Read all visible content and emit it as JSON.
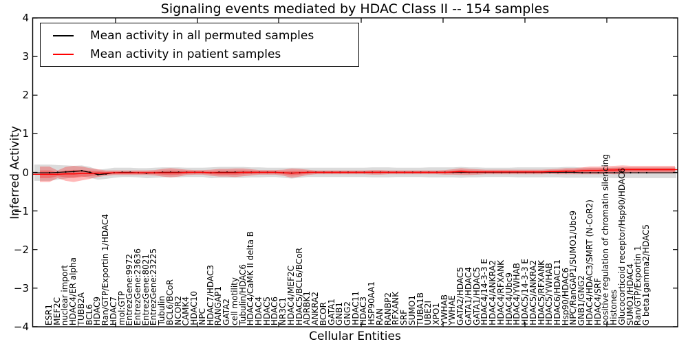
{
  "chart_data": {
    "type": "line",
    "title": "Signaling events mediated by HDAC Class II -- 154 samples",
    "xlabel": "Cellular Entities",
    "ylabel": "Inferred Activity",
    "ylim": [
      -4,
      4
    ],
    "yticks": [
      4,
      3,
      2,
      1,
      0,
      -1,
      -2,
      -3,
      -4
    ],
    "grid": false,
    "legend": {
      "position": "upper left",
      "entries": [
        {
          "label": "Mean activity in all permuted samples",
          "color": "#000000"
        },
        {
          "label": "Mean activity in patient samples",
          "color": "#ff0000"
        }
      ]
    },
    "band_colors": {
      "permuted_band": "#888888",
      "patient_band": "#ff0000"
    },
    "categories": [
      "ESR1",
      "MEF2C",
      "nuclear import",
      "HDAC4/ER alpha",
      "TUBB2A",
      "BCL6",
      "HDAC9",
      "Ran/GTP/Exportin 1/HDAC4",
      "HDAC7",
      "mol:GTP",
      "EntrezGene:9972",
      "EntrezGene:23636",
      "EntrezGene:8021",
      "EntrezGene:23225",
      "Tubulin",
      "BCL6/BCoR",
      "NCOR2",
      "CAMK4",
      "HDAC10",
      "NPC",
      "HDAC7/HDAC3",
      "RANGAP1",
      "GATA2",
      "cell motility",
      "Tubulin/HDAC6",
      "HDAC4/CaMK II delta B",
      "HDAC4",
      "HDAC5",
      "HDAC6",
      "NR3C1",
      "HDAC4/MEF2C",
      "HDAC5/BCL6/BCoR",
      "ADRBK1",
      "ANKRA2",
      "BCOR",
      "GATA1",
      "GNB1",
      "GNG2",
      "HDAC11",
      "HDAC3",
      "HSP90AA1",
      "RAN",
      "RANBP2",
      "RFXANK",
      "SRF",
      "SUMO1",
      "TUBA1B",
      "UBE2I",
      "XPO1",
      "YWHAB",
      "YWHAE",
      "GATA2/HDAC5",
      "GATA1/HDAC4",
      "GATA1/HDAC5",
      "HDAC4/14-3-3 E",
      "HDAC4/ANKRA2",
      "HDAC4/RFXANK",
      "HDAC4/Ubc9",
      "HDAC4/YWHAB",
      "HDAC5/14-3-3 E",
      "HDAC5/ANKRA2",
      "HDAC5/RFXANK",
      "HDAC5/YWHAB",
      "HDAC6/HDAC11",
      "Hsp90/HDAC6",
      "NPC/RanGAP1/SUMO1/Ubc9",
      "GNB1/GNG2",
      "HDAC4/HDAC3/SMRT (N-CoR2)",
      "HDAC4/SRF",
      "positive regulation of chromatin silencing",
      "Histones",
      "Glucocorticoid receptor/Hsp90/HDAC6",
      "SUMO1/HDAC4",
      "Ran/GTP/Exportin 1",
      "G beta1gamma2/HDAC5"
    ],
    "series": [
      {
        "name": "Mean activity in all permuted samples",
        "role": "permuted_mean",
        "color": "#000000",
        "values": [
          -0.01,
          0,
          0.01,
          0.02,
          0.04,
          0,
          -0.06,
          -0.04,
          -0.01,
          0,
          0,
          -0.01,
          -0.02,
          -0.01,
          0,
          0,
          0,
          0,
          0,
          0,
          -0.01,
          0,
          0,
          0,
          0,
          0,
          0,
          0,
          0,
          -0.01,
          -0.02,
          -0.01,
          0,
          0,
          0,
          0,
          0,
          0,
          0,
          0,
          0,
          0,
          0,
          0,
          0,
          0,
          0,
          0,
          0,
          0,
          0,
          0,
          0,
          0,
          0,
          0,
          0,
          0,
          0,
          0,
          0,
          0,
          0,
          0,
          0,
          0,
          -0.01,
          -0.01,
          -0.01,
          -0.01,
          -0.01,
          -0.01,
          -0.01,
          -0.01,
          -0.01
        ]
      },
      {
        "name": "Mean activity in patient samples",
        "role": "patient_mean",
        "color": "#ff0000",
        "values": [
          -0.05,
          -0.05,
          -0.04,
          -0.04,
          -0.03,
          -0.03,
          -0.02,
          -0.02,
          -0.01,
          -0.01,
          -0.01,
          -0.01,
          -0.01,
          -0.01,
          -0.01,
          -0.01,
          -0.01,
          0,
          0,
          0,
          -0.01,
          -0.01,
          -0.01,
          -0.01,
          0,
          0,
          0,
          0,
          0,
          -0.01,
          -0.02,
          -0.01,
          0,
          0,
          0,
          0,
          0,
          0,
          0,
          0,
          0,
          0,
          0,
          0,
          0,
          0,
          0,
          0,
          0,
          0,
          0.01,
          0.02,
          0.01,
          0.01,
          0.01,
          0.01,
          0.01,
          0.01,
          0.01,
          0.01,
          0.01,
          0.01,
          0.02,
          0.02,
          0.03,
          0.03,
          0.04,
          0.05,
          0.05,
          0.06,
          0.06,
          0.07,
          0.07,
          0.07,
          0.07
        ]
      },
      {
        "name": "Std of activity in all permuted samples (band half-width)",
        "role": "permuted_std",
        "color": "#888888",
        "values": [
          0.21,
          0.19,
          0.17,
          0.15,
          0.14,
          0.14,
          0.13,
          0.13,
          0.13,
          0.12,
          0.12,
          0.12,
          0.13,
          0.13,
          0.13,
          0.13,
          0.13,
          0.12,
          0.12,
          0.12,
          0.14,
          0.14,
          0.14,
          0.14,
          0.14,
          0.13,
          0.13,
          0.12,
          0.12,
          0.13,
          0.14,
          0.13,
          0.12,
          0.12,
          0.12,
          0.12,
          0.12,
          0.12,
          0.12,
          0.12,
          0.13,
          0.13,
          0.13,
          0.12,
          0.12,
          0.12,
          0.12,
          0.13,
          0.13,
          0.13,
          0.13,
          0.14,
          0.13,
          0.13,
          0.12,
          0.12,
          0.12,
          0.12,
          0.13,
          0.13,
          0.13,
          0.13,
          0.13,
          0.13,
          0.14,
          0.14,
          0.13,
          0.13,
          0.13,
          0.13,
          0.14,
          0.14,
          0.14,
          0.14,
          0.14
        ]
      },
      {
        "name": "Std of activity in patient samples (band half-width)",
        "role": "patient_std",
        "color": "#ff0000",
        "values": [
          0.2,
          0.1,
          0.18,
          0.21,
          0.18,
          0.14,
          0.1,
          0.07,
          0.06,
          0.06,
          0.06,
          0.06,
          0.06,
          0.07,
          0.1,
          0.12,
          0.1,
          0.07,
          0.06,
          0.06,
          0.08,
          0.1,
          0.1,
          0.11,
          0.1,
          0.08,
          0.06,
          0.06,
          0.06,
          0.08,
          0.12,
          0.1,
          0.07,
          0.05,
          0.05,
          0.05,
          0.05,
          0.05,
          0.05,
          0.05,
          0.06,
          0.06,
          0.05,
          0.05,
          0.05,
          0.05,
          0.05,
          0.05,
          0.05,
          0.06,
          0.07,
          0.09,
          0.08,
          0.07,
          0.06,
          0.06,
          0.06,
          0.06,
          0.06,
          0.06,
          0.06,
          0.06,
          0.06,
          0.07,
          0.08,
          0.08,
          0.09,
          0.1,
          0.1,
          0.1,
          0.11,
          0.11,
          0.1,
          0.1,
          0.1
        ]
      }
    ]
  }
}
